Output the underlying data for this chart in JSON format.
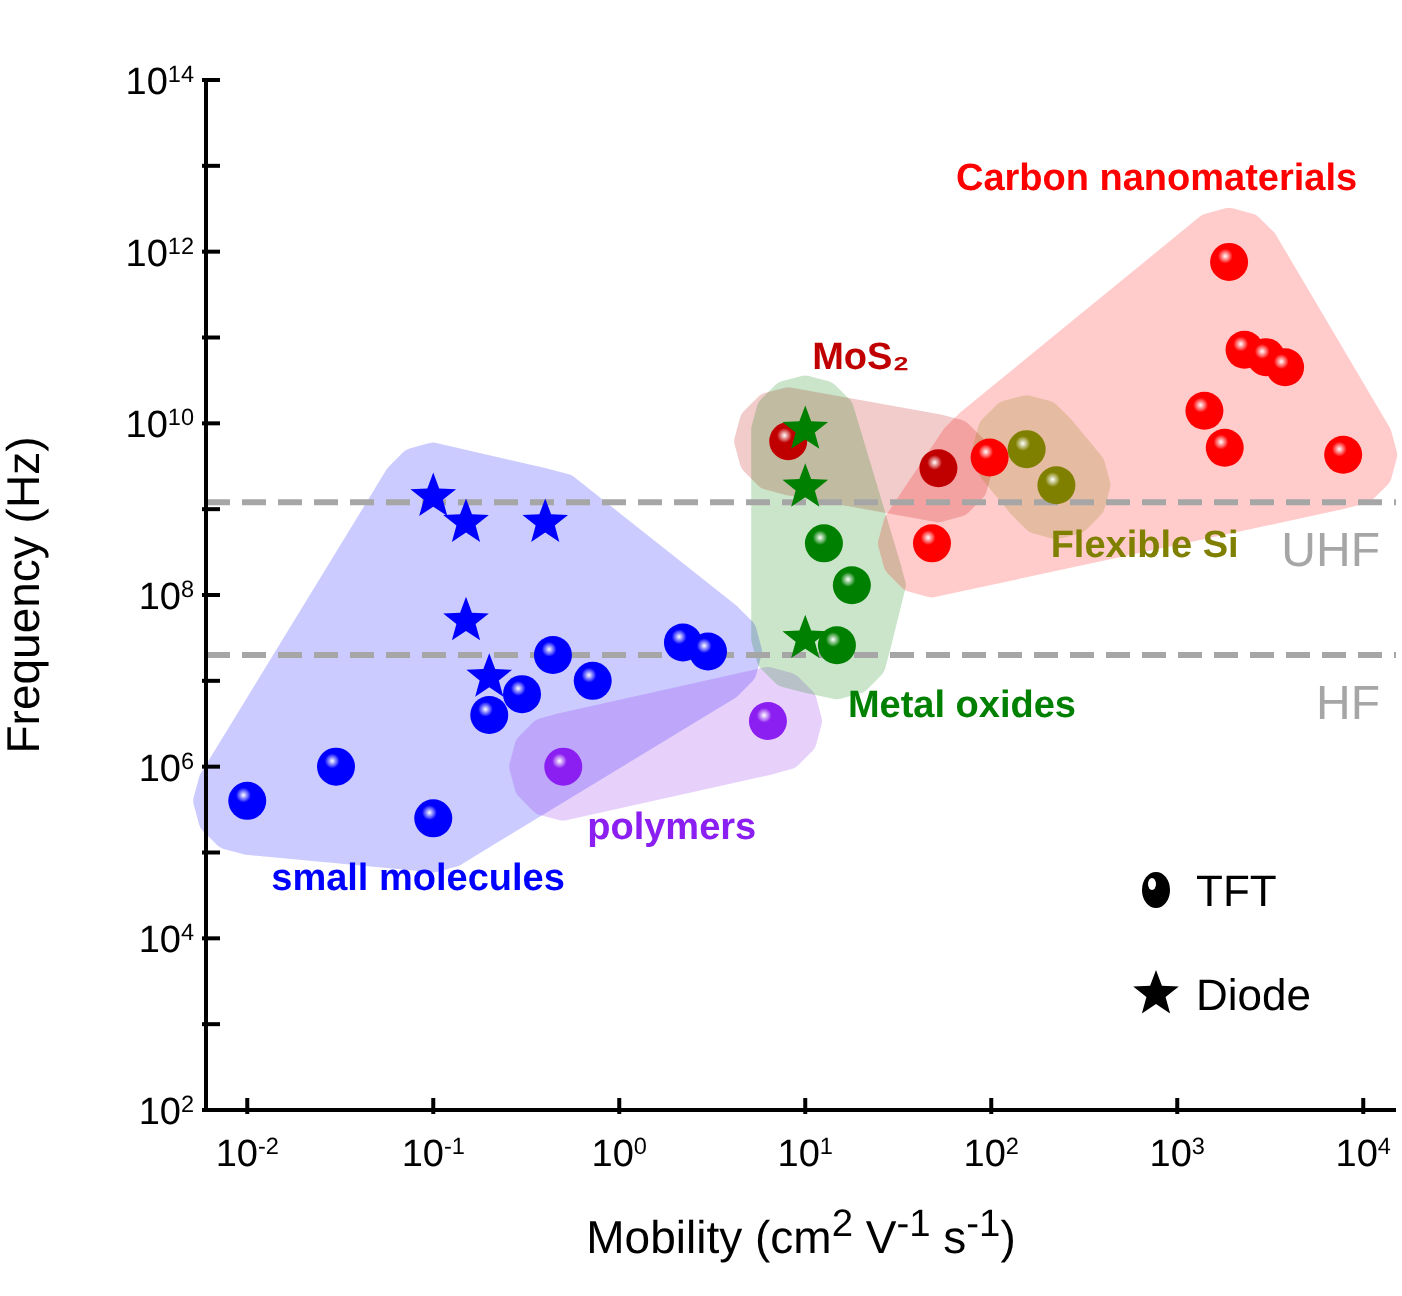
{
  "chart_data": {
    "type": "scatter",
    "xlabel": "Mobility (cm$^{2}$ V$^{-1}$ s$^{-1}$)",
    "ylabel": "Frequency (Hz)",
    "log": "xy",
    "grid": false,
    "xlim": [
      0.006,
      15000
    ],
    "ylim": [
      100,
      100000000000000.0
    ],
    "xticks": [
      {
        "value": 0.01,
        "label": "10$^{-2}$"
      },
      {
        "value": 0.1,
        "label": "10$^{-1}$"
      },
      {
        "value": 1,
        "label": "10$^{0}$"
      },
      {
        "value": 10,
        "label": "10$^{1}$"
      },
      {
        "value": 100,
        "label": "10$^{2}$"
      },
      {
        "value": 1000,
        "label": "10$^{3}$"
      },
      {
        "value": 10000,
        "label": "10$^{4}$"
      }
    ],
    "yticks": [
      {
        "value": 100,
        "label": "10$^{2}$"
      },
      {
        "value": 1000,
        "label": null
      },
      {
        "value": 10000,
        "label": "10$^{4}$"
      },
      {
        "value": 100000,
        "label": null
      },
      {
        "value": 1000000,
        "label": "10$^{6}$"
      },
      {
        "value": 10000000,
        "label": null
      },
      {
        "value": 100000000,
        "label": "10$^{8}$"
      },
      {
        "value": 1000000000,
        "label": null
      },
      {
        "value": 10000000000,
        "label": "10$^{10}$"
      },
      {
        "value": 100000000000,
        "label": null
      },
      {
        "value": 1000000000000,
        "label": "10$^{12}$"
      },
      {
        "value": 10000000000000,
        "label": null
      },
      {
        "value": 100000000000000,
        "label": "10$^{14}$"
      }
    ],
    "series": [
      {
        "name": "small molecules",
        "color": "#0000ff",
        "marker": "circle",
        "x": [
          0.01,
          0.03,
          0.1,
          0.2,
          0.3,
          0.44,
          0.72,
          2.2,
          3.0
        ],
        "values": [
          400000,
          1000000,
          250000,
          4000000,
          7000000,
          20000000,
          10000000,
          28000000,
          22000000
        ]
      },
      {
        "color": "#0000ff",
        "marker": "star",
        "x": [
          0.1,
          0.15,
          0.4,
          0.15,
          0.2
        ],
        "values": [
          1400000000,
          700000000,
          700000000,
          50000000,
          11000000
        ]
      },
      {
        "name": "polymers",
        "color": "#8b1ef0",
        "marker": "circle",
        "x": [
          0.5,
          6.3
        ],
        "values": [
          1000000,
          3400000
        ]
      },
      {
        "name": "MoS₂",
        "color": "#c00000",
        "marker": "circle",
        "x": [
          8.1,
          52
        ],
        "values": [
          6200000000,
          3000000000
        ]
      },
      {
        "name": "Metal oxides",
        "color": "#008000",
        "marker": "circle",
        "x": [
          12.6,
          17.8,
          14.8
        ],
        "values": [
          400000000,
          130000000,
          26000000
        ]
      },
      {
        "color": "#008000",
        "marker": "star",
        "x": [
          10,
          10,
          10
        ],
        "values": [
          8500000000,
          1800000000,
          31000000
        ]
      },
      {
        "name": "Carbon nanomaterials",
        "color": "#ff0000",
        "marker": "circle",
        "x": [
          1900,
          2300,
          3000,
          3800,
          1400,
          1800,
          7800,
          98,
          48
        ],
        "values": [
          760000000000,
          72000000000,
          59000000000,
          45000000000,
          14000000000,
          5200000000,
          4300000000,
          4000000000,
          400000000
        ]
      },
      {
        "name": "Flexible Si",
        "color": "#808000",
        "marker": "circle",
        "x": [
          155,
          224
        ],
        "values": [
          5000000000,
          1900000000
        ]
      }
    ],
    "ref_lines": [
      {
        "axis": "y",
        "value": 1200000000,
        "label": "UHF",
        "color": "#a6a6a6",
        "line_style": "dashed"
      },
      {
        "axis": "y",
        "value": 20000000,
        "label": "HF",
        "color": "#a6a6a6",
        "line_style": "dashed"
      }
    ],
    "annotations": [
      "TFT",
      "Diode"
    ]
  }
}
